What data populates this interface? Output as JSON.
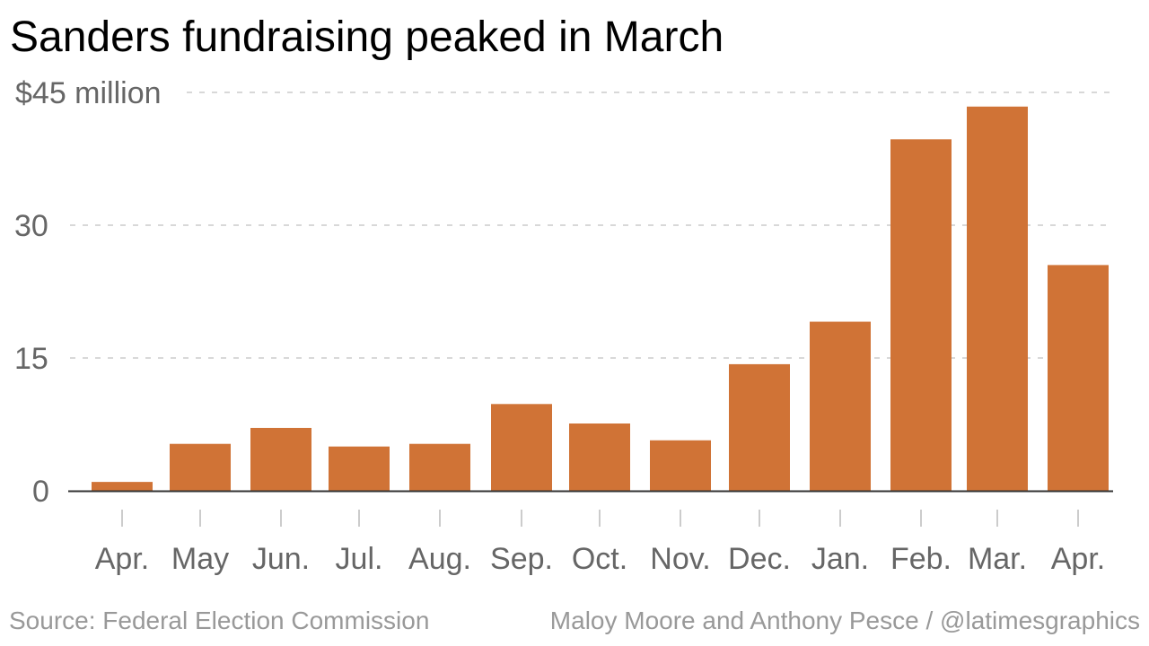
{
  "chart_data": {
    "type": "bar",
    "title": "Sanders fundraising peaked in March",
    "categories": [
      "Apr.",
      "May",
      "Jun.",
      "Jul.",
      "Aug.",
      "Sep.",
      "Oct.",
      "Nov.",
      "Dec.",
      "Jan.",
      "Feb.",
      "Mar.",
      "Apr."
    ],
    "values": [
      1.0,
      5.3,
      7.1,
      5.0,
      5.3,
      9.8,
      7.6,
      5.7,
      14.3,
      19.1,
      39.7,
      43.4,
      25.5
    ],
    "y_tick_labels": [
      "0",
      "15",
      "30",
      "$45 million"
    ],
    "y_ticks": [
      0,
      15,
      30,
      45
    ],
    "ylim": [
      0,
      45
    ],
    "xlabel": "",
    "ylabel": "",
    "grid": true,
    "bar_color": "#d07336"
  },
  "footer": {
    "source": "Source: Federal Election Commission",
    "credit": "Maloy Moore and Anthony Pesce / @latimesgraphics"
  }
}
